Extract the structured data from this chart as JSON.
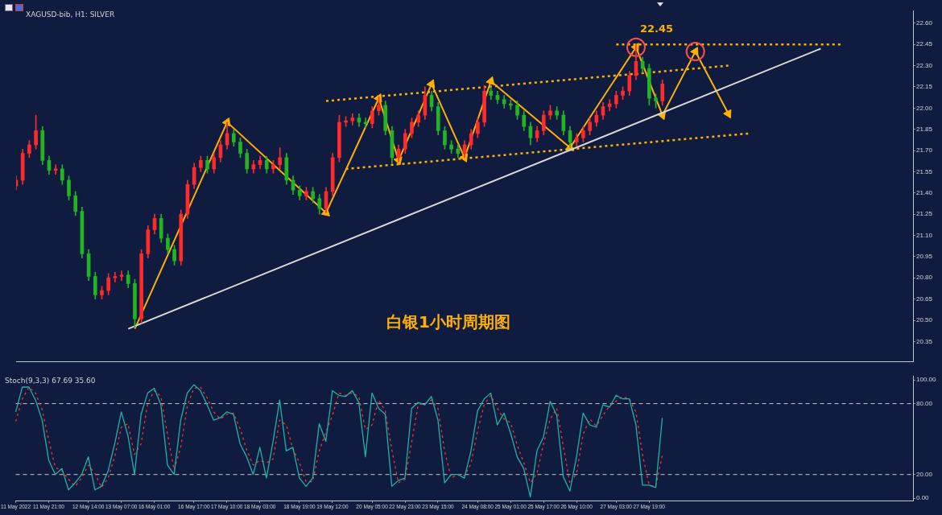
{
  "chart_data": [
    {
      "type": "candlestick",
      "title": "XAGUSD-bib, H1: SILVER",
      "categories": [
        null,
        null,
        null,
        null,
        null,
        null,
        null,
        null,
        null,
        null,
        null,
        null,
        null,
        null,
        null,
        null,
        null,
        null,
        null,
        null,
        null,
        null,
        null,
        null,
        null,
        null,
        null,
        null,
        null,
        null,
        null,
        null,
        null,
        null,
        null,
        null,
        null,
        null,
        null,
        null,
        null,
        null,
        null,
        null,
        null,
        null,
        null,
        null,
        null,
        null,
        null,
        null,
        null,
        null,
        null,
        null,
        null,
        null,
        null,
        null,
        null,
        null,
        null,
        null,
        null,
        null,
        null,
        null,
        null,
        null,
        null,
        null,
        null,
        null,
        null,
        null,
        null,
        null,
        null,
        null,
        null,
        null,
        null,
        null,
        null,
        null,
        null,
        null,
        null,
        null,
        null,
        null,
        null,
        null,
        null,
        null,
        null,
        null,
        null,
        null,
        null,
        null,
        null,
        null,
        null,
        null,
        null,
        null,
        null,
        null,
        null,
        null,
        null,
        null,
        null,
        null,
        null,
        null,
        null,
        null,
        null,
        null,
        null,
        null,
        null,
        null,
        null,
        null,
        null,
        null,
        null,
        null,
        null,
        null,
        null,
        null,
        null
      ],
      "ohlc": [
        [
          21.45,
          21.52,
          21.42,
          21.49
        ],
        [
          21.49,
          21.71,
          21.46,
          21.68
        ],
        [
          21.68,
          21.77,
          21.65,
          21.74
        ],
        [
          21.74,
          21.95,
          21.71,
          21.84
        ],
        [
          21.84,
          21.87,
          21.6,
          21.63
        ],
        [
          21.63,
          21.66,
          21.53,
          21.56
        ],
        [
          21.56,
          21.6,
          21.53,
          21.57
        ],
        [
          21.57,
          21.6,
          21.46,
          21.49
        ],
        [
          21.49,
          21.52,
          21.35,
          21.38
        ],
        [
          21.38,
          21.41,
          21.24,
          21.27
        ],
        [
          21.27,
          21.3,
          20.94,
          20.97
        ],
        [
          20.97,
          21.0,
          20.78,
          20.81
        ],
        [
          20.81,
          20.84,
          20.65,
          20.68
        ],
        [
          20.68,
          20.74,
          20.65,
          20.71
        ],
        [
          20.71,
          20.83,
          20.68,
          20.8
        ],
        [
          20.8,
          20.84,
          20.77,
          20.81
        ],
        [
          20.81,
          20.85,
          20.78,
          20.82
        ],
        [
          20.82,
          20.85,
          20.73,
          20.76
        ],
        [
          20.76,
          20.79,
          20.45,
          20.51
        ],
        [
          20.51,
          21.0,
          20.48,
          20.97
        ],
        [
          20.97,
          21.17,
          20.94,
          21.14
        ],
        [
          21.14,
          21.25,
          21.11,
          21.22
        ],
        [
          21.22,
          21.25,
          21.05,
          21.08
        ],
        [
          21.08,
          21.11,
          20.97,
          21.0
        ],
        [
          21.0,
          21.03,
          20.89,
          20.92
        ],
        [
          20.92,
          21.28,
          20.89,
          21.25
        ],
        [
          21.25,
          21.49,
          21.22,
          21.46
        ],
        [
          21.46,
          21.61,
          21.43,
          21.58
        ],
        [
          21.58,
          21.66,
          21.55,
          21.63
        ],
        [
          21.63,
          21.66,
          21.54,
          21.57
        ],
        [
          21.57,
          21.68,
          21.54,
          21.65
        ],
        [
          21.65,
          21.77,
          21.62,
          21.74
        ],
        [
          21.74,
          21.9,
          21.71,
          21.82
        ],
        [
          21.82,
          21.85,
          21.73,
          21.76
        ],
        [
          21.76,
          21.79,
          21.65,
          21.68
        ],
        [
          21.68,
          21.71,
          21.54,
          21.57
        ],
        [
          21.57,
          21.63,
          21.54,
          21.6
        ],
        [
          21.6,
          21.66,
          21.57,
          21.63
        ],
        [
          21.63,
          21.66,
          21.54,
          21.57
        ],
        [
          21.57,
          21.63,
          21.54,
          21.6
        ],
        [
          21.6,
          21.72,
          21.57,
          21.65
        ],
        [
          21.65,
          21.68,
          21.46,
          21.49
        ],
        [
          21.49,
          21.52,
          21.39,
          21.42
        ],
        [
          21.42,
          21.45,
          21.35,
          21.38
        ],
        [
          21.38,
          21.44,
          21.35,
          21.41
        ],
        [
          21.41,
          21.44,
          21.33,
          21.36
        ],
        [
          21.36,
          21.39,
          21.25,
          21.29
        ],
        [
          21.29,
          21.44,
          21.26,
          21.41
        ],
        [
          21.41,
          21.68,
          21.38,
          21.65
        ],
        [
          21.65,
          21.95,
          21.62,
          21.9
        ],
        [
          21.9,
          21.94,
          21.87,
          21.91
        ],
        [
          21.91,
          21.96,
          21.88,
          21.93
        ],
        [
          21.93,
          21.96,
          21.87,
          21.9
        ],
        [
          21.9,
          21.93,
          21.86,
          21.89
        ],
        [
          21.89,
          22.01,
          21.86,
          21.98
        ],
        [
          21.98,
          22.08,
          21.95,
          22.02
        ],
        [
          22.02,
          22.05,
          21.81,
          21.84
        ],
        [
          21.84,
          21.87,
          21.61,
          21.65
        ],
        [
          21.65,
          21.74,
          21.62,
          21.71
        ],
        [
          21.71,
          21.85,
          21.68,
          21.82
        ],
        [
          21.82,
          21.93,
          21.79,
          21.9
        ],
        [
          21.9,
          21.98,
          21.87,
          21.95
        ],
        [
          21.95,
          22.15,
          21.92,
          22.09
        ],
        [
          22.09,
          22.12,
          21.98,
          22.01
        ],
        [
          22.01,
          22.04,
          21.81,
          21.84
        ],
        [
          21.84,
          21.87,
          21.71,
          21.74
        ],
        [
          21.74,
          21.77,
          21.68,
          21.71
        ],
        [
          21.71,
          21.74,
          21.65,
          21.68
        ],
        [
          21.68,
          21.77,
          21.65,
          21.74
        ],
        [
          21.74,
          21.85,
          21.71,
          21.82
        ],
        [
          21.82,
          21.93,
          21.79,
          21.9
        ],
        [
          21.9,
          22.16,
          21.87,
          22.12
        ],
        [
          22.12,
          22.15,
          22.06,
          22.09
        ],
        [
          22.09,
          22.12,
          22.03,
          22.06
        ],
        [
          22.06,
          22.09,
          22.0,
          22.03
        ],
        [
          22.03,
          22.06,
          21.99,
          22.02
        ],
        [
          22.02,
          22.05,
          21.92,
          21.95
        ],
        [
          21.95,
          21.98,
          21.84,
          21.87
        ],
        [
          21.87,
          21.9,
          21.74,
          21.79
        ],
        [
          21.79,
          21.87,
          21.76,
          21.84
        ],
        [
          21.84,
          21.98,
          21.81,
          21.95
        ],
        [
          21.95,
          22.02,
          21.92,
          21.98
        ],
        [
          21.98,
          22.01,
          21.92,
          21.95
        ],
        [
          21.95,
          21.98,
          21.81,
          21.84
        ],
        [
          21.84,
          21.87,
          21.72,
          21.76
        ],
        [
          21.76,
          21.82,
          21.73,
          21.79
        ],
        [
          21.79,
          21.87,
          21.76,
          21.84
        ],
        [
          21.84,
          21.93,
          21.81,
          21.9
        ],
        [
          21.9,
          21.98,
          21.87,
          21.95
        ],
        [
          21.95,
          22.04,
          21.92,
          22.01
        ],
        [
          22.01,
          22.06,
          21.98,
          22.03
        ],
        [
          22.03,
          22.12,
          22.0,
          22.09
        ],
        [
          22.09,
          22.15,
          22.06,
          22.12
        ],
        [
          22.12,
          22.26,
          22.09,
          22.23
        ],
        [
          22.23,
          22.45,
          22.2,
          22.33
        ],
        [
          22.33,
          22.36,
          22.25,
          22.28
        ],
        [
          22.28,
          22.31,
          22.02,
          22.07
        ],
        [
          22.07,
          22.1,
          22.0,
          22.05
        ],
        [
          22.05,
          22.2,
          22.02,
          22.17
        ],
        null,
        null,
        null,
        null,
        null,
        null,
        null,
        null,
        null,
        null,
        null,
        null,
        null,
        null,
        null,
        null,
        null,
        null,
        null,
        null,
        null,
        null,
        null,
        null,
        null,
        null,
        null,
        null,
        null,
        null,
        null,
        null,
        null,
        null,
        null,
        null,
        null,
        null
      ],
      "colors": [
        "#ff2a2a",
        "#ff2a2a",
        "#ff2a2a",
        "#ff2a2a",
        "#22b422",
        "#22b422",
        "#ff2a2a",
        "#22b422",
        "#22b422",
        "#22b422",
        "#22b422",
        "#22b422",
        "#22b422",
        "#ff2a2a",
        "#ff2a2a",
        "#ff2a2a",
        "#ff2a2a",
        "#22b422",
        "#22b422",
        "#ff2a2a",
        "#ff2a2a",
        "#ff2a2a",
        "#22b422",
        "#22b422",
        "#22b422",
        "#ff2a2a",
        "#ff2a2a",
        "#ff2a2a",
        "#ff2a2a",
        "#22b422",
        "#ff2a2a",
        "#ff2a2a",
        "#ff2a2a",
        "#22b422",
        "#22b422",
        "#22b422",
        "#ff2a2a",
        "#ff2a2a",
        "#22b422",
        "#ff2a2a",
        "#ff2a2a",
        "#22b422",
        "#22b422",
        "#22b422",
        "#ff2a2a",
        "#22b422",
        "#22b422",
        "#ff2a2a",
        "#ff2a2a",
        "#ff2a2a",
        "#ff2a2a",
        "#ff2a2a",
        "#22b422",
        "#22b422",
        "#ff2a2a",
        "#ff2a2a",
        "#22b422",
        "#22b422",
        "#ff2a2a",
        "#ff2a2a",
        "#ff2a2a",
        "#ff2a2a",
        "#ff2a2a",
        "#22b422",
        "#22b422",
        "#22b422",
        "#22b422",
        "#22b422",
        "#ff2a2a",
        "#ff2a2a",
        "#ff2a2a",
        "#ff2a2a",
        "#22b422",
        "#22b422",
        "#22b422",
        "#22b422",
        "#22b422",
        "#22b422",
        "#22b422",
        "#ff2a2a",
        "#ff2a2a",
        "#ff2a2a",
        "#22b422",
        "#22b422",
        "#22b422",
        "#ff2a2a",
        "#ff2a2a",
        "#ff2a2a",
        "#ff2a2a",
        "#ff2a2a",
        "#ff2a2a",
        "#ff2a2a",
        "#ff2a2a",
        "#ff2a2a",
        "#ff2a2a",
        "#22b422",
        "#22b422",
        "#22b422",
        "#ff2a2a",
        null,
        null,
        null,
        null,
        null,
        null,
        null,
        null,
        null,
        null,
        null,
        null,
        null,
        null,
        null,
        null,
        null,
        null,
        null,
        null,
        null,
        null,
        null,
        null,
        null,
        null,
        null,
        null,
        null,
        null,
        null,
        null,
        null,
        null,
        null,
        null,
        null,
        null
      ],
      "ylim": [
        20.21,
        22.69
      ],
      "yticks": [
        {
          "value": 20.35,
          "label": "20.35"
        },
        {
          "value": 20.5,
          "label": "20.50"
        },
        {
          "value": 20.65,
          "label": "20.65"
        },
        {
          "value": 20.8,
          "label": "20.80"
        },
        {
          "value": 20.95,
          "label": "20.95"
        },
        {
          "value": 21.1,
          "label": "21.10"
        },
        {
          "value": 21.25,
          "label": "21.25"
        },
        {
          "value": 21.4,
          "label": "21.40"
        },
        {
          "value": 21.55,
          "label": "21.55"
        },
        {
          "value": 21.7,
          "label": "21.70"
        },
        {
          "value": 21.85,
          "label": "21.85"
        },
        {
          "value": 22,
          "label": "22.00"
        },
        {
          "value": 22.15,
          "label": "22.15"
        },
        {
          "value": 22.3,
          "label": "22.30"
        },
        {
          "value": 22.45,
          "label": "22.45"
        },
        {
          "value": 22.6,
          "label": "22.60"
        }
      ],
      "tick_labels": "y",
      "grid": false,
      "annotations": [
        "白银1小时周期图",
        "22.45"
      ],
      "series": [
        {
          "type": "line",
          "color": "#d8d8d8",
          "line_style": "solid",
          "values": [
            null,
            null,
            null,
            null,
            null,
            null,
            null,
            null,
            null,
            null,
            null,
            null,
            null,
            null,
            null,
            null,
            null,
            20.44,
            null,
            null,
            null,
            null,
            null,
            null,
            null,
            null,
            null,
            null,
            null,
            null,
            null,
            null,
            null,
            null,
            null,
            null,
            null,
            null,
            null,
            null,
            null,
            null,
            null,
            null,
            null,
            null,
            null,
            null,
            null,
            null,
            null,
            null,
            null,
            null,
            null,
            null,
            null,
            null,
            null,
            null,
            null,
            null,
            null,
            null,
            null,
            null,
            null,
            null,
            null,
            null,
            null,
            null,
            null,
            null,
            null,
            null,
            null,
            null,
            null,
            null,
            null,
            null,
            null,
            null,
            null,
            null,
            null,
            null,
            null,
            null,
            null,
            null,
            null,
            null,
            null,
            null,
            null,
            null,
            null,
            null,
            null,
            null,
            null,
            null,
            null,
            null,
            null,
            null,
            null,
            null,
            null,
            null,
            null,
            null,
            null,
            null,
            null,
            null,
            null,
            null,
            null,
            null,
            22.42,
            null,
            null,
            null,
            null,
            null,
            null,
            null,
            null,
            null,
            null,
            null,
            null,
            null,
            null
          ]
        },
        {
          "type": "line",
          "color": "#ffb000",
          "line_style": "dotted",
          "values": [
            null,
            null,
            null,
            null,
            null,
            null,
            null,
            null,
            null,
            null,
            null,
            null,
            null,
            null,
            null,
            null,
            null,
            null,
            null,
            null,
            null,
            null,
            null,
            null,
            null,
            null,
            null,
            null,
            null,
            null,
            null,
            null,
            null,
            null,
            null,
            null,
            null,
            null,
            null,
            null,
            null,
            null,
            null,
            null,
            null,
            null,
            null,
            22.05,
            null,
            null,
            null,
            null,
            null,
            null,
            null,
            null,
            null,
            null,
            null,
            null,
            null,
            null,
            null,
            null,
            null,
            null,
            null,
            null,
            null,
            null,
            null,
            null,
            null,
            null,
            null,
            null,
            null,
            null,
            null,
            null,
            null,
            null,
            null,
            null,
            null,
            null,
            null,
            null,
            null,
            null,
            null,
            null,
            null,
            null,
            null,
            null,
            null,
            null,
            null,
            null,
            null,
            null,
            null,
            null,
            null,
            null,
            null,
            null,
            22.3,
            null,
            null,
            null,
            null,
            null,
            null,
            null,
            null,
            null,
            null,
            null,
            null,
            null,
            null,
            null,
            null,
            null,
            null,
            null,
            null,
            null,
            null,
            null,
            null,
            null,
            null,
            null,
            null
          ]
        },
        {
          "type": "line",
          "color": "#ffb000",
          "line_style": "dotted",
          "values": [
            null,
            null,
            null,
            null,
            null,
            null,
            null,
            null,
            null,
            null,
            null,
            null,
            null,
            null,
            null,
            null,
            null,
            null,
            null,
            null,
            null,
            null,
            null,
            null,
            null,
            null,
            null,
            null,
            null,
            null,
            null,
            null,
            null,
            null,
            null,
            null,
            null,
            null,
            null,
            null,
            null,
            null,
            null,
            null,
            null,
            null,
            null,
            null,
            null,
            null,
            21.57,
            null,
            null,
            null,
            null,
            null,
            null,
            null,
            null,
            null,
            null,
            null,
            null,
            null,
            null,
            null,
            null,
            null,
            null,
            null,
            null,
            null,
            null,
            null,
            null,
            null,
            null,
            null,
            null,
            null,
            null,
            null,
            null,
            null,
            null,
            null,
            null,
            null,
            null,
            null,
            null,
            null,
            null,
            null,
            null,
            null,
            null,
            null,
            null,
            null,
            null,
            null,
            null,
            null,
            null,
            null,
            null,
            null,
            null,
            null,
            null,
            21.82,
            null,
            null,
            null,
            null,
            null,
            null,
            null,
            null,
            null,
            null,
            null,
            null,
            null,
            null,
            null,
            null,
            null,
            null,
            null,
            null,
            null,
            null,
            null,
            null,
            null
          ]
        },
        {
          "type": "line",
          "color": "#ffb000",
          "line_style": "dotted",
          "values": [
            null,
            null,
            null,
            null,
            null,
            null,
            null,
            null,
            null,
            null,
            null,
            null,
            null,
            null,
            null,
            null,
            null,
            null,
            null,
            null,
            null,
            null,
            null,
            null,
            null,
            null,
            null,
            null,
            null,
            null,
            null,
            null,
            null,
            null,
            null,
            null,
            null,
            null,
            null,
            null,
            null,
            null,
            null,
            null,
            null,
            null,
            null,
            null,
            null,
            null,
            null,
            null,
            null,
            null,
            null,
            null,
            null,
            null,
            null,
            null,
            null,
            null,
            null,
            null,
            null,
            null,
            null,
            null,
            null,
            null,
            null,
            null,
            null,
            null,
            null,
            null,
            null,
            null,
            null,
            null,
            null,
            null,
            null,
            null,
            null,
            null,
            null,
            null,
            null,
            null,
            null,
            22.45,
            null,
            null,
            null,
            null,
            null,
            null,
            null,
            null,
            null,
            null,
            null,
            null,
            null,
            null,
            null,
            null,
            null,
            null,
            null,
            null,
            null,
            null,
            null,
            null,
            null,
            null,
            null,
            null,
            null,
            null,
            null,
            null,
            null,
            22.45,
            null,
            null,
            null,
            null,
            null,
            null,
            null,
            null,
            null,
            null,
            null
          ]
        },
        {
          "type": "line",
          "color": "#ffb000",
          "line_style": "solid",
          "marker": "triangle",
          "values": [
            null,
            null,
            null,
            null,
            null,
            null,
            null,
            null,
            null,
            null,
            null,
            null,
            null,
            null,
            null,
            null,
            null,
            null,
            20.44,
            null,
            null,
            null,
            null,
            null,
            null,
            null,
            null,
            null,
            null,
            null,
            null,
            null,
            21.9,
            null,
            null,
            null,
            null,
            null,
            null,
            null,
            null,
            null,
            null,
            null,
            null,
            null,
            null,
            21.26,
            null,
            null,
            null,
            null,
            null,
            null,
            null,
            22.07,
            null,
            null,
            21.63,
            null,
            null,
            null,
            null,
            22.17,
            null,
            null,
            null,
            null,
            21.65,
            null,
            null,
            null,
            22.19,
            null,
            null,
            null,
            null,
            null,
            null,
            null,
            null,
            null,
            null,
            null,
            21.72,
            null,
            null,
            null,
            null,
            null,
            null,
            null,
            null,
            null,
            22.43,
            null,
            null,
            null,
            21.95,
            null,
            null,
            null,
            null,
            22.4,
            null,
            null,
            null,
            null,
            21.96,
            null,
            null,
            null,
            null,
            null,
            null,
            null,
            null,
            null,
            null,
            null,
            null,
            null,
            null,
            null,
            null,
            null,
            null,
            null,
            null,
            null,
            null,
            null,
            null,
            null,
            null,
            null,
            null
          ]
        },
        {
          "type": "scatter",
          "color": "#ff4d4d",
          "marker": "circle",
          "values": [
            null,
            null,
            null,
            null,
            null,
            null,
            null,
            null,
            null,
            null,
            null,
            null,
            null,
            null,
            null,
            null,
            null,
            null,
            null,
            null,
            null,
            null,
            null,
            null,
            null,
            null,
            null,
            null,
            null,
            null,
            null,
            null,
            null,
            null,
            null,
            null,
            null,
            null,
            null,
            null,
            null,
            null,
            null,
            null,
            null,
            null,
            null,
            null,
            null,
            null,
            null,
            null,
            null,
            null,
            null,
            null,
            null,
            null,
            null,
            null,
            null,
            null,
            null,
            null,
            null,
            null,
            null,
            null,
            null,
            null,
            null,
            null,
            null,
            null,
            null,
            null,
            null,
            null,
            null,
            null,
            null,
            null,
            null,
            null,
            null,
            null,
            null,
            null,
            null,
            null,
            null,
            null,
            null,
            null,
            22.43,
            null,
            null,
            null,
            null,
            null,
            null,
            null,
            null,
            22.4,
            null,
            null,
            null,
            null,
            null,
            null,
            null,
            null,
            null,
            null,
            null,
            null,
            null,
            null,
            null,
            null,
            null,
            null,
            null,
            null,
            null,
            null,
            null,
            null,
            null,
            null,
            null,
            null,
            null,
            null,
            null,
            null,
            null
          ]
        }
      ]
    },
    {
      "type": "line",
      "title": "Stoch(9,3,3) 67.69 35.60",
      "categories": [
        "11 May 2022",
        null,
        null,
        null,
        null,
        "11 May 21:00",
        null,
        null,
        null,
        null,
        null,
        "12 May 14:00",
        null,
        null,
        null,
        null,
        "13 May 07:00",
        null,
        null,
        null,
        null,
        "16 May 01:00",
        null,
        null,
        null,
        null,
        null,
        "16 May 17:00",
        null,
        null,
        null,
        null,
        "17 May 10:00",
        null,
        null,
        null,
        null,
        "18 May 03:00",
        null,
        null,
        null,
        null,
        null,
        "18 May 19:00",
        null,
        null,
        null,
        null,
        "19 May 12:00",
        null,
        null,
        null,
        null,
        null,
        "20 May 05:00",
        null,
        null,
        null,
        null,
        "22 May 23:00",
        null,
        null,
        null,
        null,
        "23 May 15:00",
        null,
        null,
        null,
        null,
        null,
        "24 May 08:00",
        null,
        null,
        null,
        null,
        "25 May 01:00",
        null,
        null,
        null,
        null,
        "25 May 17:00",
        null,
        null,
        null,
        null,
        "26 May 10:00",
        null,
        null,
        null,
        null,
        null,
        "27 May 03:00",
        null,
        null,
        null,
        null,
        "27 May 19:00",
        null,
        null,
        null,
        null,
        null,
        null,
        null,
        null,
        null,
        null,
        null,
        null,
        null,
        null,
        null,
        null,
        null,
        null,
        null,
        null,
        null,
        null,
        null,
        null,
        null,
        null,
        null,
        null,
        null,
        null,
        null,
        null,
        null,
        null,
        null,
        null,
        null,
        null,
        null,
        null
      ],
      "ylim": [
        -2,
        103
      ],
      "yticks": [
        {
          "value": 0,
          "label": "0.00"
        },
        {
          "value": 20,
          "label": "20.00"
        },
        {
          "value": 80,
          "label": "80.00"
        },
        {
          "value": 100,
          "label": "100.00"
        }
      ],
      "grid": false,
      "ref_lines": [
        {
          "axis": "y",
          "value": 20,
          "color": "#c8c8c8",
          "line_style": "dashed"
        },
        {
          "axis": "y",
          "value": 80,
          "color": "#c8c8c8",
          "line_style": "dashed"
        }
      ],
      "series": [
        {
          "color": "#20b2aa",
          "line_style": "solid",
          "values": [
            73,
            94,
            94,
            83,
            66,
            32,
            20,
            25,
            7,
            13,
            20,
            35,
            7,
            10,
            23,
            46,
            73,
            53,
            20,
            71,
            89,
            93,
            79,
            28,
            20,
            66,
            89,
            96,
            91,
            79,
            66,
            68,
            73,
            71,
            46,
            35,
            20,
            43,
            17,
            48,
            83,
            40,
            43,
            17,
            10,
            17,
            63,
            48,
            91,
            87,
            86,
            91,
            81,
            35,
            89,
            76,
            71,
            10,
            15,
            17,
            76,
            81,
            79,
            86,
            66,
            13,
            20,
            20,
            17,
            40,
            74,
            84,
            89,
            62,
            72,
            55,
            35,
            25,
            1,
            40,
            52,
            82,
            70,
            18,
            6,
            35,
            72,
            62,
            60,
            79,
            77,
            87,
            84,
            84,
            62,
            11,
            11,
            9,
            68,
            null,
            null,
            null,
            null,
            null,
            null,
            null,
            null,
            null,
            null,
            null,
            null,
            null,
            null,
            null,
            null,
            null,
            null,
            null,
            null,
            null,
            null,
            null,
            null,
            null,
            null,
            null,
            null,
            null,
            null,
            null,
            null,
            null,
            null,
            null,
            null,
            null,
            null
          ]
        },
        {
          "color": "#ff3030",
          "line_style": "dotted",
          "values": [
            65,
            84,
            94,
            89,
            75,
            49,
            26,
            23,
            16,
            10,
            17,
            28,
            21,
            9,
            17,
            35,
            60,
            63,
            37,
            46,
            80,
            91,
            86,
            54,
            24,
            43,
            78,
            93,
            94,
            85,
            73,
            67,
            71,
            72,
            59,
            41,
            28,
            32,
            30,
            33,
            66,
            62,
            42,
            30,
            14,
            14,
            40,
            56,
            70,
            89,
            87,
            89,
            86,
            58,
            62,
            83,
            74,
            41,
            13,
            16,
            47,
            79,
            80,
            83,
            76,
            40,
            17,
            20,
            19,
            29,
            57,
            79,
            87,
            76,
            67,
            64,
            45,
            30,
            13,
            21,
            46,
            67,
            76,
            44,
            12,
            21,
            54,
            67,
            61,
            70,
            78,
            82,
            86,
            84,
            73,
            37,
            11,
            10,
            36,
            null,
            null,
            null,
            null,
            null,
            null,
            null,
            null,
            null,
            null,
            null,
            null,
            null,
            null,
            null,
            null,
            null,
            null,
            null,
            null,
            null,
            null,
            null,
            null,
            null,
            null,
            null,
            null,
            null,
            null,
            null,
            null,
            null,
            null,
            null,
            null,
            null,
            null
          ]
        }
      ]
    }
  ]
}
